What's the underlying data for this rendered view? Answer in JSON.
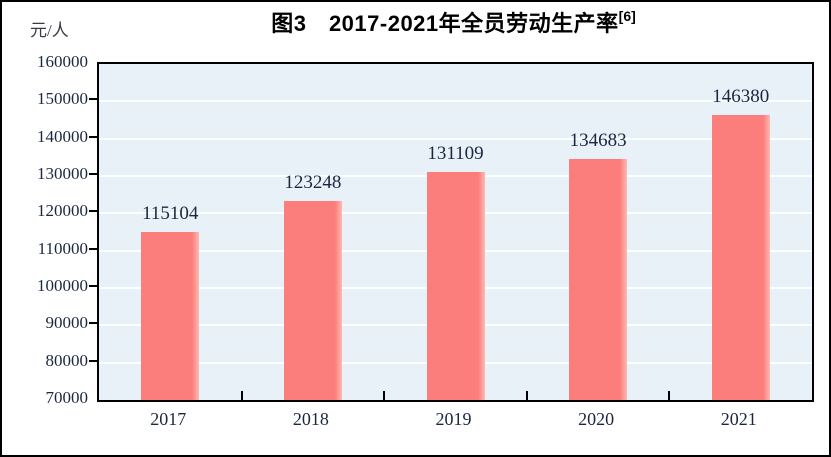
{
  "figure": {
    "title": "图3　2017-2021年全员劳动生产率",
    "title_note": "[6]",
    "unit_label": "元/人"
  },
  "chart_data": {
    "type": "bar",
    "title": "图3　2017-2021年全员劳动生产率[6]",
    "unit": "元/人",
    "categories": [
      "2017",
      "2018",
      "2019",
      "2020",
      "2021"
    ],
    "values": [
      115104,
      123248,
      131109,
      134683,
      146380
    ],
    "data_labels": [
      "115104",
      "123248",
      "131109",
      "134683",
      "146380"
    ],
    "xlabel": "",
    "ylabel": "元/人",
    "ylim": [
      70000,
      160000
    ],
    "ytick_interval": 10000,
    "ytick_labels": [
      "160000",
      "150000",
      "140000",
      "130000",
      "120000",
      "110000",
      "100000",
      "90000",
      "80000",
      "70000"
    ],
    "grid": "horizontal",
    "legend": "none",
    "colors": {
      "bar": "#FC7E7C",
      "bar_edge_highlight": "#FDB9B2",
      "plot_background": "#E9F1F8",
      "gridline": "#FFFFFF",
      "axis": "#000000",
      "tick_text": "#1B2740",
      "title_text": "#000000",
      "unit_text": "#3A3A46",
      "frame": "#000000",
      "background": "#FFFFFF"
    }
  }
}
